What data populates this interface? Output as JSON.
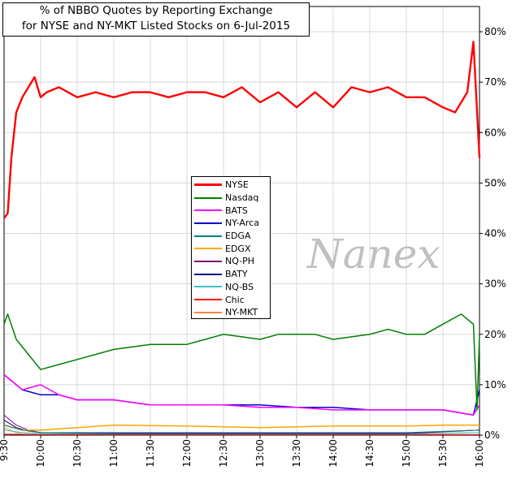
{
  "chart_data": {
    "type": "line",
    "title": [
      "% of NBBO Quotes by Reporting Exchange",
      "for NYSE and NY-MKT Listed Stocks on 6-Jul-2015"
    ],
    "x_ticks": [
      "9:30",
      "10:00",
      "10:30",
      "11:00",
      "11:30",
      "12:00",
      "12:30",
      "13:00",
      "13:30",
      "14:00",
      "14:30",
      "15:00",
      "15:30",
      "16:00"
    ],
    "y_ticks": [
      "0%",
      "10%",
      "20%",
      "30%",
      "40%",
      "50%",
      "60%",
      "70%",
      "80%"
    ],
    "ylim": [
      0,
      85
    ],
    "grid": true,
    "legend_placement": "center",
    "watermark": "Nanex",
    "series": [
      {
        "name": "NYSE",
        "color": "#ff0000",
        "width": 2.4,
        "x": [
          "9:30",
          "9:33",
          "9:36",
          "9:40",
          "9:45",
          "9:50",
          "9:55",
          "10:00",
          "10:05",
          "10:15",
          "10:30",
          "10:45",
          "11:00",
          "11:15",
          "11:30",
          "11:45",
          "12:00",
          "12:15",
          "12:30",
          "12:45",
          "13:00",
          "13:15",
          "13:30",
          "13:45",
          "14:00",
          "14:15",
          "14:30",
          "14:45",
          "15:00",
          "15:15",
          "15:30",
          "15:40",
          "15:50",
          "15:55",
          "16:00"
        ],
        "y": [
          43,
          44,
          55,
          64,
          67,
          69,
          71,
          67,
          68,
          69,
          67,
          68,
          67,
          68,
          68,
          67,
          68,
          68,
          67,
          69,
          66,
          68,
          65,
          68,
          65,
          69,
          68,
          69,
          67,
          67,
          65,
          64,
          68,
          78,
          55
        ]
      },
      {
        "name": "Nasdaq",
        "color": "#008000",
        "width": 1.5,
        "x": [
          "9:30",
          "9:33",
          "9:40",
          "9:50",
          "10:00",
          "10:15",
          "10:30",
          "10:45",
          "11:00",
          "11:30",
          "12:00",
          "12:30",
          "13:00",
          "13:15",
          "13:30",
          "13:45",
          "14:00",
          "14:30",
          "14:45",
          "15:00",
          "15:15",
          "15:30",
          "15:45",
          "15:55",
          "15:58",
          "16:00"
        ],
        "y": [
          22,
          24,
          19,
          16,
          13,
          14,
          15,
          16,
          17,
          18,
          18,
          20,
          19,
          20,
          20,
          20,
          19,
          20,
          21,
          20,
          20,
          22,
          24,
          22,
          5,
          20
        ]
      },
      {
        "name": "BATS",
        "color": "#ff00ff",
        "width": 1.5,
        "x": [
          "9:30",
          "9:45",
          "10:00",
          "10:15",
          "10:30",
          "11:00",
          "11:30",
          "12:00",
          "12:30",
          "13:00",
          "13:30",
          "14:00",
          "14:30",
          "15:00",
          "15:30",
          "15:55",
          "16:00"
        ],
        "y": [
          12,
          9,
          10,
          8,
          7,
          7,
          6,
          6,
          6,
          5.5,
          5.5,
          5,
          5,
          5,
          5,
          4,
          6
        ]
      },
      {
        "name": "NY-Arca",
        "color": "#0000cc",
        "width": 1.5,
        "x": [
          "9:30",
          "9:45",
          "10:00",
          "10:15",
          "10:30",
          "11:00",
          "11:30",
          "12:00",
          "12:30",
          "13:00",
          "13:30",
          "14:00",
          "14:30",
          "15:00",
          "15:30",
          "15:55",
          "16:00"
        ],
        "y": [
          12,
          9,
          8,
          8,
          7,
          7,
          6,
          6,
          6,
          6,
          5.5,
          5.5,
          5,
          5,
          5,
          4,
          9
        ]
      },
      {
        "name": "EDGA",
        "color": "#008080",
        "width": 1,
        "x": [
          "9:30",
          "9:45",
          "10:00",
          "11:00",
          "12:00",
          "13:00",
          "14:00",
          "15:00",
          "16:00"
        ],
        "y": [
          2,
          1,
          0.5,
          0.5,
          0.5,
          0.5,
          0.5,
          0.5,
          1
        ]
      },
      {
        "name": "EDGX",
        "color": "#ffa500",
        "width": 1.5,
        "x": [
          "9:30",
          "9:45",
          "10:00",
          "10:30",
          "11:00",
          "12:00",
          "13:00",
          "14:00",
          "15:00",
          "15:30",
          "16:00"
        ],
        "y": [
          2,
          1,
          1,
          1.5,
          2,
          1.8,
          1.5,
          1.8,
          1.8,
          2,
          2
        ]
      },
      {
        "name": "NQ-PH",
        "color": "#800080",
        "width": 1,
        "x": [
          "9:30",
          "9:40",
          "9:50",
          "10:00",
          "11:00",
          "12:00",
          "13:00",
          "14:00",
          "15:00",
          "16:00"
        ],
        "y": [
          4,
          2,
          1,
          0.5,
          0.3,
          0.3,
          0.3,
          0.3,
          0.3,
          1
        ]
      },
      {
        "name": "BATY",
        "color": "#000080",
        "width": 1,
        "x": [
          "9:30",
          "9:40",
          "9:50",
          "10:00",
          "11:00",
          "12:00",
          "13:00",
          "14:00",
          "15:00",
          "16:00"
        ],
        "y": [
          3,
          1.5,
          0.8,
          0.5,
          0.4,
          0.4,
          0.4,
          0.4,
          0.4,
          1
        ]
      },
      {
        "name": "NQ-BS",
        "color": "#40c0c0",
        "width": 1,
        "x": [
          "9:30",
          "9:45",
          "10:00",
          "11:00",
          "12:00",
          "13:00",
          "14:00",
          "15:00",
          "16:00"
        ],
        "y": [
          1,
          0.5,
          0.3,
          0.2,
          0.2,
          0.2,
          0.2,
          0.2,
          0.5
        ]
      },
      {
        "name": "Chic",
        "color": "#ff0000",
        "width": 1,
        "x": [
          "9:30",
          "10:00",
          "11:00",
          "12:00",
          "13:00",
          "14:00",
          "15:00",
          "16:00"
        ],
        "y": [
          0.2,
          0.1,
          0.1,
          0.1,
          0.1,
          0.1,
          0.1,
          0.1
        ]
      },
      {
        "name": "NY-MKT",
        "color": "#ff8040",
        "width": 1,
        "x": [
          "9:30",
          "9:40",
          "10:00",
          "11:00",
          "12:00",
          "13:00",
          "14:00",
          "15:00",
          "16:00"
        ],
        "y": [
          1.5,
          0.5,
          0.3,
          0.3,
          0.3,
          0.3,
          0.3,
          0.3,
          0.5
        ]
      }
    ]
  }
}
